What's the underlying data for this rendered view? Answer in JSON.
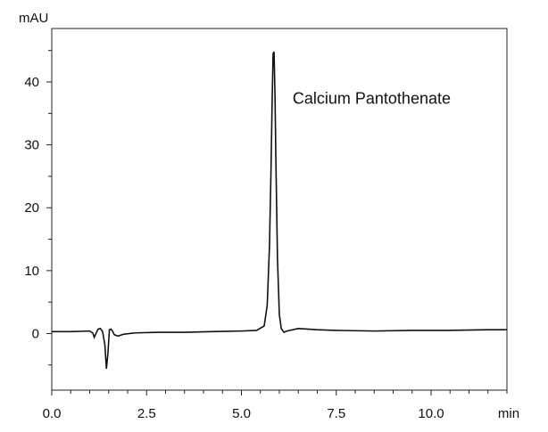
{
  "chart_data": {
    "type": "line",
    "title": "",
    "xlabel": "min",
    "ylabel": "mAU",
    "xlim": [
      0,
      12.0
    ],
    "ylim": [
      -9,
      48.5
    ],
    "x_ticks": [
      0.0,
      2.5,
      5.0,
      7.5,
      10.0
    ],
    "x_tick_labels": [
      "0.0",
      "2.5",
      "5.0",
      "7.5",
      "10.0"
    ],
    "y_ticks": [
      0,
      10,
      20,
      30,
      40
    ],
    "y_tick_labels": [
      "0",
      "10",
      "20",
      "30",
      "40"
    ],
    "grid": false,
    "annotation": {
      "text": "Calcium Pantothenate",
      "x": 6.35,
      "y": 36.5
    },
    "series": [
      {
        "x": [
          0.0,
          0.5,
          1.0,
          1.08,
          1.12,
          1.18,
          1.22,
          1.28,
          1.34,
          1.4,
          1.44,
          1.48,
          1.52,
          1.56,
          1.6,
          1.65,
          1.75,
          1.9,
          2.2,
          2.8,
          3.5,
          4.2,
          5.0,
          5.4,
          5.6,
          5.68,
          5.74,
          5.78,
          5.81,
          5.835,
          5.86,
          5.885,
          5.91,
          5.95,
          6.0,
          6.05,
          6.12,
          6.2,
          6.5,
          7.0,
          7.5,
          8.5,
          9.5,
          10.5,
          11.5,
          12.0
        ],
        "y": [
          0.3,
          0.3,
          0.4,
          0.1,
          -0.6,
          0.2,
          0.7,
          0.8,
          0.3,
          -1.8,
          -5.6,
          -3.2,
          0.6,
          0.7,
          0.4,
          -0.2,
          -0.4,
          -0.1,
          0.1,
          0.2,
          0.2,
          0.3,
          0.4,
          0.5,
          1.2,
          4.5,
          14.0,
          26.0,
          37.0,
          44.5,
          44.8,
          38.0,
          27.0,
          12.0,
          3.0,
          0.8,
          0.2,
          0.4,
          0.8,
          0.6,
          0.5,
          0.4,
          0.5,
          0.5,
          0.6,
          0.6
        ]
      }
    ]
  }
}
